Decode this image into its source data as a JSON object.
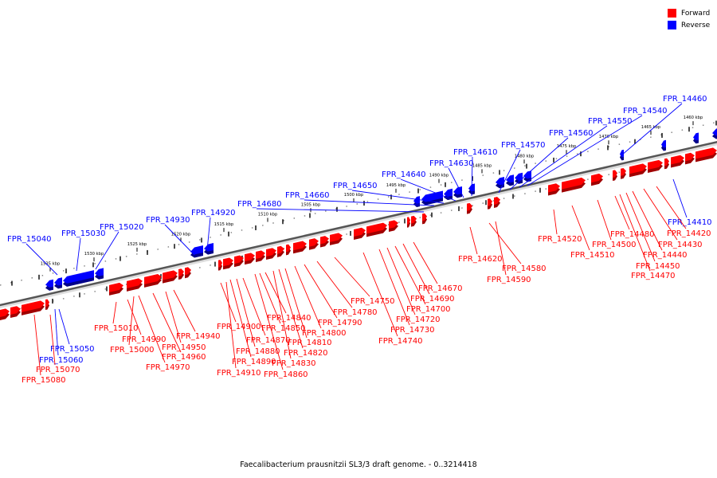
{
  "legend": {
    "forward_label": "Forward",
    "reverse_label": "Reverse",
    "forward_color": "#ff0000",
    "reverse_color": "#0000ff"
  },
  "caption": "Faecalibacterium prausnitzii SL3/3 draft genome. - 0..3214418",
  "scale_ticks": [
    "1535 kbp",
    "1530 kbp",
    "1525 kbp",
    "1520 kbp",
    "1515 kbp",
    "1510 kbp",
    "1505 kbp",
    "1500 kbp",
    "1495 kbp",
    "1490 kbp",
    "1485 kbp",
    "1480 kbp",
    "1475 kbp",
    "1470 kbp",
    "1465 kbp",
    "1460 kbp"
  ],
  "reverse_genes": [
    "FPR_15040",
    "FPR_15030",
    "FPR_15020",
    "FPR_14930",
    "FPR_14920",
    "FPR_14680",
    "FPR_14660",
    "FPR_14650",
    "FPR_14640",
    "FPR_14630",
    "FPR_14610",
    "FPR_14570",
    "FPR_14560",
    "FPR_14550",
    "FPR_14540",
    "FPR_14460",
    "FPR_15050",
    "FPR_15060",
    "FPR_14410"
  ],
  "forward_genes": [
    "FPR_15070",
    "FPR_15080",
    "FPR_15010",
    "FPR_14990",
    "FPR_15000",
    "FPR_14940",
    "FPR_14950",
    "FPR_14960",
    "FPR_14970",
    "FPR_14900",
    "FPR_14910",
    "FPR_14890",
    "FPR_14880",
    "FPR_14870",
    "FPR_14860",
    "FPR_14850",
    "FPR_14840",
    "FPR_14830",
    "FPR_14820",
    "FPR_14810",
    "FPR_14800",
    "FPR_14790",
    "FPR_14780",
    "FPR_14750",
    "FPR_14740",
    "FPR_14730",
    "FPR_14720",
    "FPR_14700",
    "FPR_14690",
    "FPR_14670",
    "FPR_14620",
    "FPR_14580",
    "FPR_14590",
    "FPR_14520",
    "FPR_14510",
    "FPR_14500",
    "FPR_14480",
    "FPR_14470",
    "FPR_14450",
    "FPR_14440",
    "FPR_14430",
    "FPR_14420"
  ]
}
